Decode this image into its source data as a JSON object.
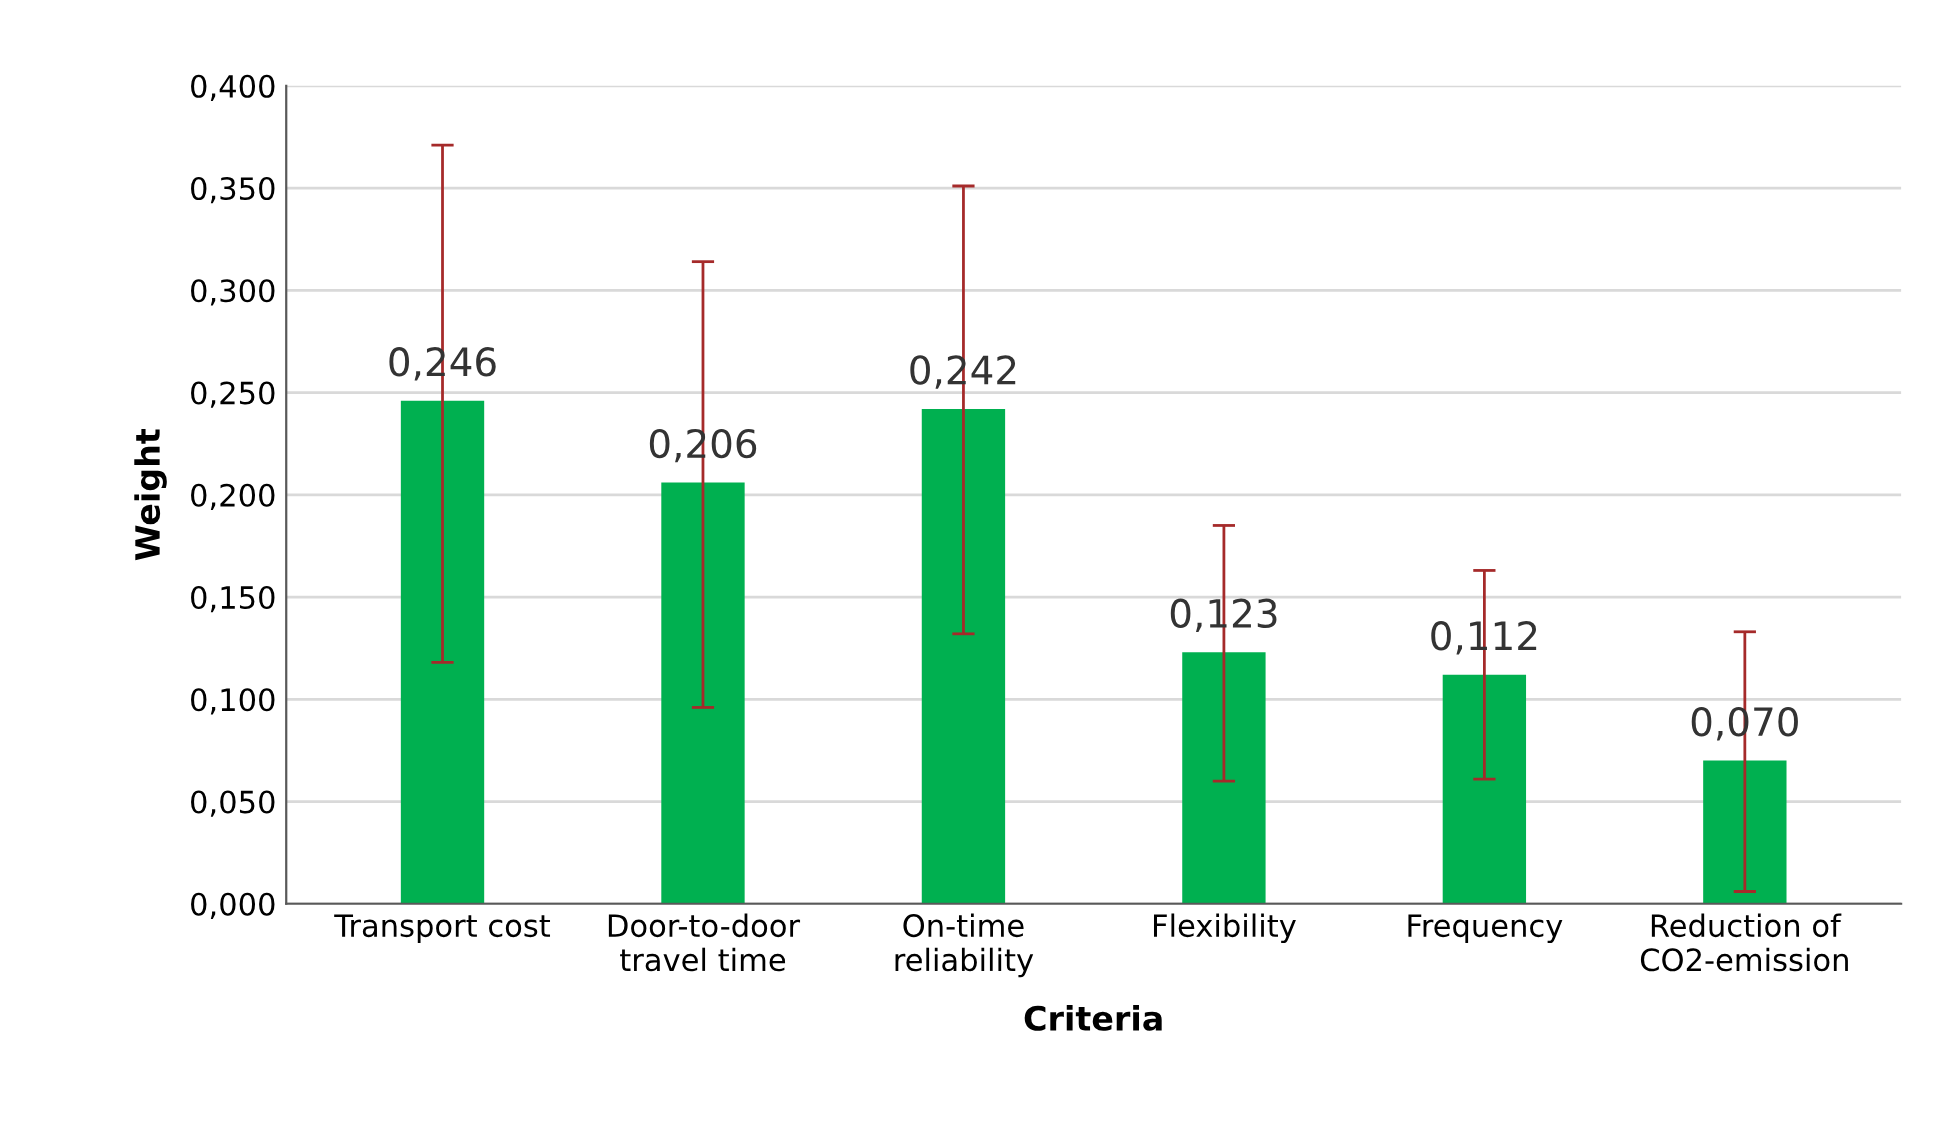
{
  "chart_data": {
    "type": "bar",
    "xlabel": "Criteria",
    "ylabel": "Weight",
    "categories": [
      "Transport cost",
      "Door-to-door\ntravel time",
      "On-time\nreliability",
      "Flexibility",
      "Frequency",
      "Reduction of\nCO2-emission"
    ],
    "values": [
      0.246,
      0.206,
      0.242,
      0.123,
      0.112,
      0.07
    ],
    "value_labels": [
      "0,246",
      "0,206",
      "0,242",
      "0,123",
      "0,112",
      "0,070"
    ],
    "errors": [
      [
        0.118,
        0.371
      ],
      [
        0.096,
        0.314
      ],
      [
        0.132,
        0.351
      ],
      [
        0.06,
        0.185
      ],
      [
        0.061,
        0.163
      ],
      [
        0.006,
        0.133
      ]
    ],
    "color": "#00b050",
    "ylim": [
      0,
      0.4
    ],
    "yticks": [
      {
        "value": 0,
        "label": "0,000"
      },
      {
        "value": 0.05,
        "label": "0,050"
      },
      {
        "value": 0.1,
        "label": "0,100"
      },
      {
        "value": 0.15,
        "label": "0,150"
      },
      {
        "value": 0.2,
        "label": "0,200"
      },
      {
        "value": 0.25,
        "label": "0,250"
      },
      {
        "value": 0.3,
        "label": "0,300"
      },
      {
        "value": 0.35,
        "label": "0,350"
      },
      {
        "value": 0.4,
        "label": "0,400"
      }
    ],
    "grid": "y",
    "legend": false
  }
}
